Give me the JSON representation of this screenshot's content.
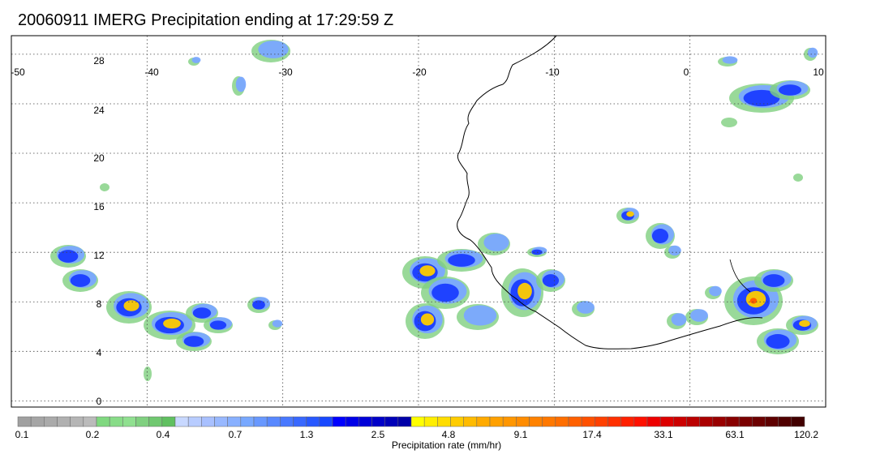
{
  "title": "20060911 IMERG Precipitation ending at 17:29:59 Z",
  "map": {
    "lon_ticks": [
      "-50",
      "-40",
      "-30",
      "-20",
      "-10",
      "0",
      "10"
    ],
    "lat_ticks": [
      "28",
      "24",
      "20",
      "16",
      "12",
      "8",
      "4",
      "0"
    ],
    "lon_range": [
      -50,
      10
    ],
    "lat_range": [
      -0.5,
      29.5
    ],
    "grid": "dotted",
    "coastline_color": "#000000"
  },
  "colorbar": {
    "label": "Precipitation rate (mm/hr)",
    "tick_labels": [
      "0.1",
      "0.2",
      "0.4",
      "0.7",
      "1.3",
      "2.5",
      "4.8",
      "9.1",
      "17.4",
      "33.1",
      "63.1",
      "120.2"
    ],
    "colors": [
      "#a0a0a0",
      "#a5a5a5",
      "#aaaaaa",
      "#b0b0b0",
      "#b5b5b5",
      "#bbbbbb",
      "#80d880",
      "#88dc88",
      "#90e090",
      "#80d080",
      "#70c870",
      "#60c060",
      "#c8d8ff",
      "#b8ccff",
      "#a8c0ff",
      "#98b8ff",
      "#88b0ff",
      "#78a8ff",
      "#6898ff",
      "#5888ff",
      "#4878ff",
      "#3868ff",
      "#2858ff",
      "#1848ff",
      "#0000ff",
      "#0000e8",
      "#0000d8",
      "#0000c8",
      "#0000b8",
      "#0000a8",
      "#ffff00",
      "#ffee00",
      "#ffdd00",
      "#ffcc00",
      "#ffbb00",
      "#ffaa00",
      "#ffa000",
      "#ff9600",
      "#ff8c00",
      "#ff8200",
      "#ff7800",
      "#ff6e00",
      "#ff6000",
      "#ff5000",
      "#ff4000",
      "#ff3000",
      "#ff2000",
      "#ff1000",
      "#ee0000",
      "#dd0000",
      "#cc0000",
      "#bb0000",
      "#aa0000",
      "#990000",
      "#880000",
      "#7a0000",
      "#6c0000",
      "#5e0000",
      "#500000",
      "#420000"
    ]
  }
}
